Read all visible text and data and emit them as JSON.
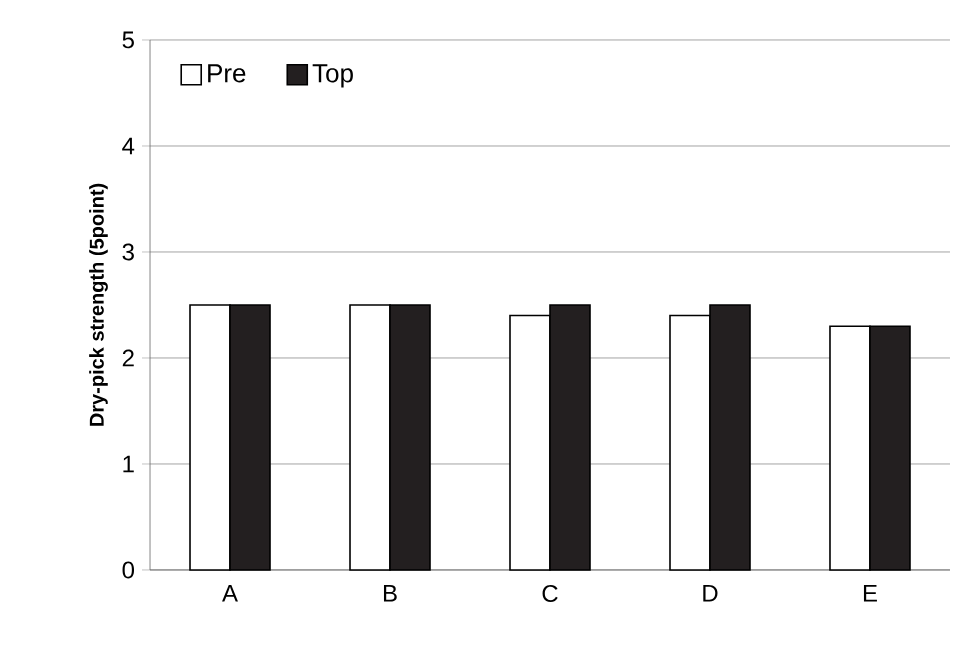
{
  "chart_data": {
    "type": "bar",
    "ylabel": "Dry-pick strength (5point)",
    "categories": [
      "A",
      "B",
      "C",
      "D",
      "E"
    ],
    "series": [
      {
        "name": "Pre",
        "color": "#ffffff",
        "values": [
          2.5,
          2.5,
          2.4,
          2.4,
          2.3
        ]
      },
      {
        "name": "Top",
        "color": "#231f20",
        "values": [
          2.5,
          2.5,
          2.5,
          2.5,
          2.3
        ]
      }
    ],
    "ylim": [
      0,
      5
    ],
    "yticks": [
      0,
      1,
      2,
      3,
      4,
      5
    ],
    "grid": "y",
    "legend": "top left"
  }
}
